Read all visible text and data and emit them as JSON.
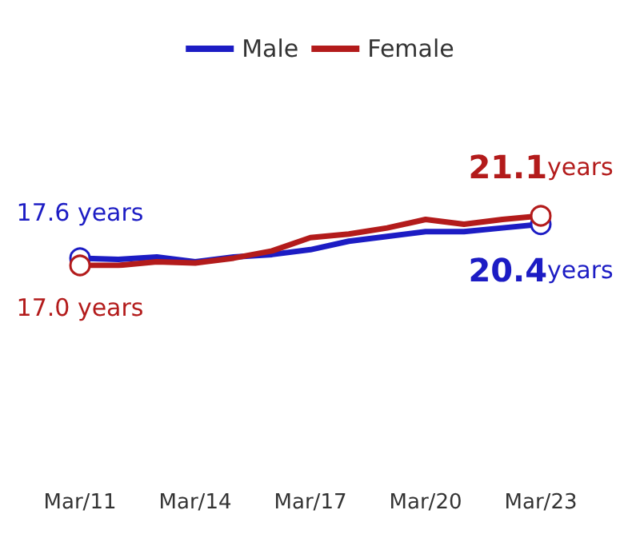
{
  "chart_data": {
    "type": "line",
    "legend": "top",
    "line_style": "solid",
    "categories": [
      "Mar/11",
      null,
      null,
      "Mar/14",
      null,
      null,
      "Mar/17",
      null,
      null,
      "Mar/20",
      null,
      null,
      "Mar/23"
    ],
    "series": [
      {
        "name": "Male",
        "color": "#1c1cc4",
        "values": [
          17.6,
          17.5,
          17.7,
          17.3,
          17.7,
          17.9,
          18.3,
          19.0,
          19.4,
          19.8,
          19.8,
          20.1,
          20.4
        ],
        "value_labels": [
          "17.6 years",
          null,
          null,
          null,
          null,
          null,
          null,
          null,
          null,
          null,
          null,
          null,
          "20.4years"
        ]
      },
      {
        "name": "Female",
        "color": "#b31b1b",
        "values": [
          17.0,
          17.0,
          17.3,
          17.2,
          17.6,
          18.2,
          19.3,
          19.6,
          20.1,
          20.8,
          20.4,
          20.8,
          21.1
        ],
        "value_labels": [
          "17.0 years",
          null,
          null,
          null,
          null,
          null,
          null,
          null,
          null,
          null,
          null,
          null,
          "21.1years"
        ]
      }
    ]
  }
}
